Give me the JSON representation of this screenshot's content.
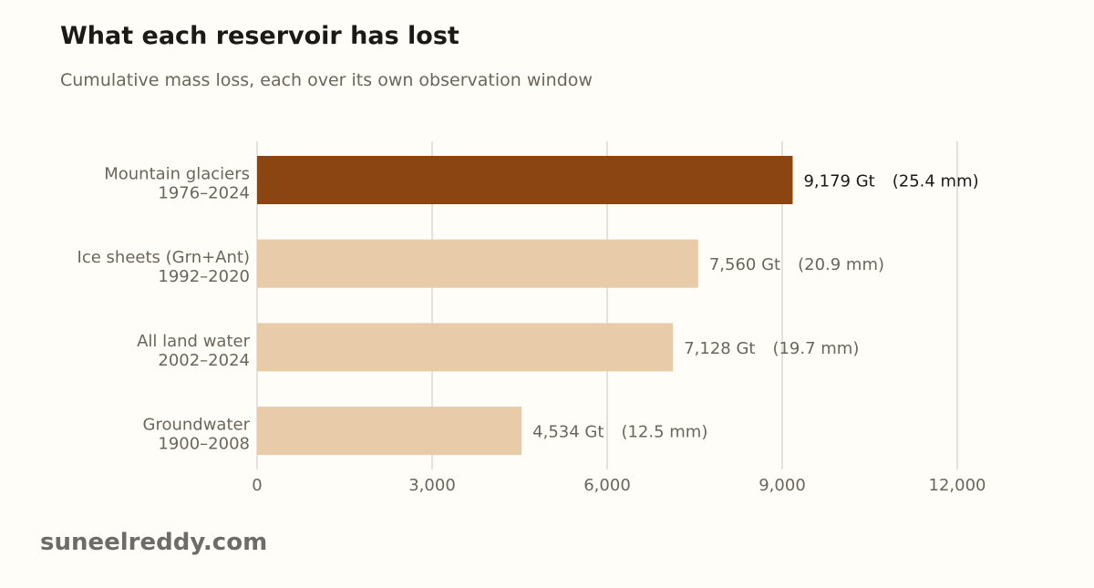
{
  "page": {
    "title": "What each reservoir has lost",
    "subtitle": "Cumulative mass loss, each over its own observation window",
    "brand": "suneelreddy.com"
  },
  "colors": {
    "background": "#fefdf8",
    "highlight_bar": "#8b4513",
    "bar": "#e8cba9",
    "gridline": "#dcdad5",
    "muted_text": "#6b665c",
    "dark_text": "#1c1a17"
  },
  "chart_data": {
    "type": "bar",
    "orientation": "horizontal",
    "title": "What each reservoir has lost",
    "subtitle": "Cumulative mass loss, each over its own observation window",
    "categories": [
      {
        "name": "Mountain glaciers",
        "period": "1976–2024"
      },
      {
        "name": "Ice sheets (Grn+Ant)",
        "period": "1992–2020"
      },
      {
        "name": "All land water",
        "period": "2002–2024"
      },
      {
        "name": "Groundwater",
        "period": "1900–2008"
      }
    ],
    "values": [
      9179,
      7560,
      7128,
      4534
    ],
    "value_labels": [
      "9,179 Gt",
      "7,560 Gt",
      "7,128 Gt",
      "4,534 Gt"
    ],
    "secondary_labels": [
      "(25.4 mm)",
      "(20.9 mm)",
      "(19.7 mm)",
      "(12.5 mm)"
    ],
    "highlight_index": 0,
    "xlim": [
      0,
      12000
    ],
    "xticks": [
      0,
      3000,
      6000,
      9000,
      12000
    ],
    "xtick_labels": [
      "0",
      "3,000",
      "6,000",
      "9,000",
      "12,000"
    ],
    "xlabel": "",
    "ylabel": "",
    "grid": true,
    "legend": "none"
  }
}
